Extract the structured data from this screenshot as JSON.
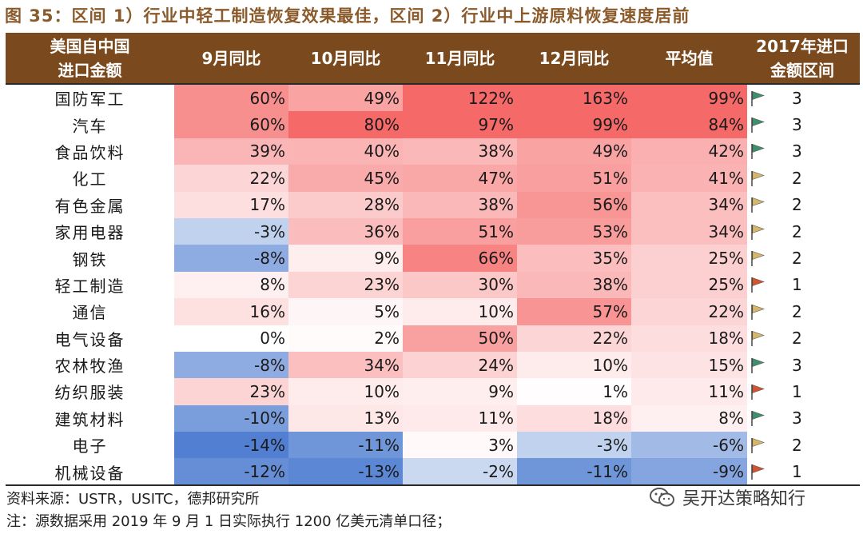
{
  "title": "图 35：区间 1）行业中轻工制造恢复效果最佳，区间 2）行业中上游原料恢复速度居前",
  "table": {
    "headers": [
      "美国自中国\n进口金额",
      "9月同比",
      "10月同比",
      "11月同比",
      "12月同比",
      "平均值",
      "2017年进口\n金额区间"
    ],
    "rows": [
      {
        "name": "国防军工",
        "vals": [
          "60%",
          "49%",
          "122%",
          "163%",
          "99%"
        ],
        "nums": [
          60,
          49,
          122,
          163,
          99
        ],
        "rank": "3"
      },
      {
        "name": "汽车",
        "vals": [
          "60%",
          "80%",
          "97%",
          "99%",
          "84%"
        ],
        "nums": [
          60,
          80,
          97,
          99,
          84
        ],
        "rank": "3"
      },
      {
        "name": "食品饮料",
        "vals": [
          "39%",
          "40%",
          "38%",
          "49%",
          "42%"
        ],
        "nums": [
          39,
          40,
          38,
          49,
          42
        ],
        "rank": "3"
      },
      {
        "name": "化工",
        "vals": [
          "22%",
          "45%",
          "47%",
          "51%",
          "41%"
        ],
        "nums": [
          22,
          45,
          47,
          51,
          41
        ],
        "rank": "2"
      },
      {
        "name": "有色金属",
        "vals": [
          "17%",
          "28%",
          "38%",
          "56%",
          "34%"
        ],
        "nums": [
          17,
          28,
          38,
          56,
          34
        ],
        "rank": "2"
      },
      {
        "name": "家用电器",
        "vals": [
          "-3%",
          "36%",
          "51%",
          "53%",
          "34%"
        ],
        "nums": [
          -3,
          36,
          51,
          53,
          34
        ],
        "rank": "2"
      },
      {
        "name": "钢铁",
        "vals": [
          "-8%",
          "9%",
          "66%",
          "35%",
          "25%"
        ],
        "nums": [
          -8,
          9,
          66,
          35,
          25
        ],
        "rank": "2"
      },
      {
        "name": "轻工制造",
        "vals": [
          "8%",
          "23%",
          "30%",
          "38%",
          "25%"
        ],
        "nums": [
          8,
          23,
          30,
          38,
          25
        ],
        "rank": "1"
      },
      {
        "name": "通信",
        "vals": [
          "16%",
          "5%",
          "10%",
          "57%",
          "22%"
        ],
        "nums": [
          16,
          5,
          10,
          57,
          22
        ],
        "rank": "2"
      },
      {
        "name": "电气设备",
        "vals": [
          "0%",
          "2%",
          "50%",
          "22%",
          "18%"
        ],
        "nums": [
          0,
          2,
          50,
          22,
          18
        ],
        "rank": "2"
      },
      {
        "name": "农林牧渔",
        "vals": [
          "-8%",
          "34%",
          "24%",
          "10%",
          "15%"
        ],
        "nums": [
          -8,
          34,
          24,
          10,
          15
        ],
        "rank": "3"
      },
      {
        "name": "纺织服装",
        "vals": [
          "23%",
          "10%",
          "9%",
          "1%",
          "11%"
        ],
        "nums": [
          23,
          10,
          9,
          1,
          11
        ],
        "rank": "1"
      },
      {
        "name": "建筑材料",
        "vals": [
          "-10%",
          "13%",
          "11%",
          "18%",
          "8%"
        ],
        "nums": [
          -10,
          13,
          11,
          18,
          8
        ],
        "rank": "3"
      },
      {
        "name": "电子",
        "vals": [
          "-14%",
          "-11%",
          "3%",
          "-3%",
          "-6%"
        ],
        "nums": [
          -14,
          -11,
          3,
          -3,
          -6
        ],
        "rank": "2"
      },
      {
        "name": "机械设备",
        "vals": [
          "-12%",
          "-13%",
          "-2%",
          "-11%",
          "-9%"
        ],
        "nums": [
          -12,
          -13,
          -2,
          -11,
          -9
        ],
        "rank": "1"
      }
    ]
  },
  "colors": {
    "header_bg": "#7a4a1e",
    "title": "#8B5A2B",
    "flag_1": "#d2552f",
    "flag_2": "#d6b66a",
    "flag_3": "#3f8f6e"
  },
  "source": "资料来源：USTR，USITC，德邦研究所",
  "note": "注：源数据采用 2019 年 9 月 1 日实际执行 1200 亿美元清单口径；",
  "watermark": "吴开达策略知行"
}
